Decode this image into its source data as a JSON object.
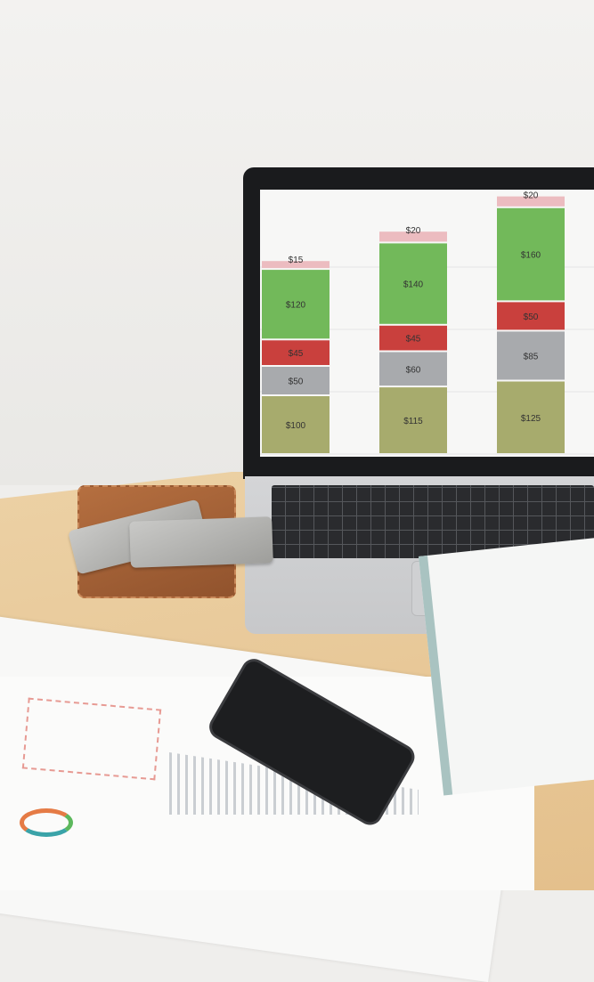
{
  "chart_data": {
    "type": "bar",
    "stacked": true,
    "categories": [
      "",
      "",
      ""
    ],
    "series": [
      {
        "color": "#a7ab6d",
        "values": [
          100,
          115,
          125
        ]
      },
      {
        "color": "#a8aaad",
        "values": [
          50,
          60,
          85
        ]
      },
      {
        "color": "#c9403d",
        "values": [
          45,
          45,
          50
        ]
      },
      {
        "color": "#72b95a",
        "values": [
          120,
          140,
          160
        ]
      },
      {
        "color": "#ecbcc0",
        "values": [
          15,
          20,
          20
        ]
      }
    ],
    "data_labels": [
      [
        "$100",
        "$50",
        "$45",
        "$120",
        "$15"
      ],
      [
        "$115",
        "$60",
        "$45",
        "$140",
        "$20"
      ],
      [
        "$125",
        "$85",
        "$50",
        "$160",
        "$20"
      ]
    ],
    "grid": true,
    "legend": "none"
  }
}
